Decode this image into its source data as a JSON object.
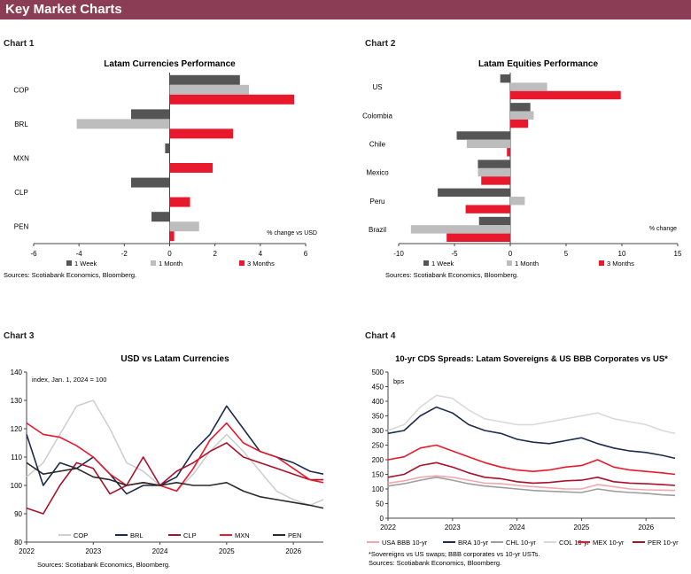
{
  "header": {
    "title": "Key Market Charts"
  },
  "chart_headings": [
    "Chart 1",
    "Chart 2",
    "Chart 3",
    "Chart 4"
  ],
  "chart_data": [
    {
      "type": "bar",
      "orientation": "horizontal",
      "title": "Latam Currencies Performance",
      "categories": [
        "COP",
        "BRL",
        "MXN",
        "CLP",
        "PEN"
      ],
      "series": [
        {
          "name": "1 Week",
          "color": "#555555",
          "values": [
            3.1,
            -1.7,
            -0.2,
            -1.7,
            -0.8
          ]
        },
        {
          "name": "1 Month",
          "color": "#bdbdbd",
          "values": [
            3.5,
            -4.1,
            0.0,
            0.0,
            1.3
          ]
        },
        {
          "name": "3 Months",
          "color": "#e8192c",
          "values": [
            5.5,
            2.8,
            1.9,
            0.9,
            0.2
          ]
        }
      ],
      "xlim": [
        -6,
        6
      ],
      "xticks": [
        "-6",
        "-4",
        "-2",
        "0",
        "2",
        "4",
        "6"
      ],
      "annotation": "% change vs USD",
      "source": "Sources: Scotiabank Economics, Bloomberg."
    },
    {
      "type": "bar",
      "orientation": "horizontal",
      "title": "Latam Equities Performance",
      "categories": [
        "US",
        "Colombia",
        "Chile",
        "Mexico",
        "Peru",
        "Brazil"
      ],
      "series": [
        {
          "name": "1 Week",
          "color": "#555555",
          "values": [
            -0.9,
            1.8,
            -4.8,
            -2.9,
            -6.5,
            -2.8
          ]
        },
        {
          "name": "1 Month",
          "color": "#bdbdbd",
          "values": [
            3.3,
            2.1,
            -3.9,
            -2.9,
            1.3,
            -8.9
          ]
        },
        {
          "name": "3 Months",
          "color": "#e8192c",
          "values": [
            9.9,
            1.6,
            -0.3,
            -2.6,
            -4.0,
            -5.7
          ]
        }
      ],
      "xlim": [
        -10,
        15
      ],
      "xticks": [
        "-10",
        "-5",
        "0",
        "5",
        "10",
        "15"
      ],
      "annotation": "% change",
      "source": "Sources: Scotiabank Economics, Bloomberg."
    },
    {
      "type": "line",
      "title": "USD vs Latam Currencies",
      "annotation": "index, Jan. 1, 2024 = 100",
      "ylim": [
        80,
        140
      ],
      "yticks": [
        "80",
        "90",
        "100",
        "110",
        "120",
        "130",
        "140"
      ],
      "xlim": [
        2022.0,
        2026.45
      ],
      "xticks": [
        {
          "label": "2022",
          "x": 2022.0
        },
        {
          "label": "2023",
          "x": 2023.0
        },
        {
          "label": "2024",
          "x": 2024.0
        },
        {
          "label": "2025",
          "x": 2025.0
        },
        {
          "label": "2026",
          "x": 2026.0
        }
      ],
      "x": [
        2022.0,
        2022.25,
        2022.5,
        2022.75,
        2023.0,
        2023.25,
        2023.5,
        2023.75,
        2024.0,
        2024.25,
        2024.5,
        2024.75,
        2025.0,
        2025.25,
        2025.5,
        2025.75,
        2026.0,
        2026.25,
        2026.45
      ],
      "series": [
        {
          "name": "COP",
          "color": "#cfcfcf",
          "values": [
            103,
            108,
            118,
            128,
            130,
            120,
            108,
            105,
            100,
            98,
            104,
            112,
            118,
            112,
            105,
            98,
            95,
            93,
            95
          ]
        },
        {
          "name": "BRL",
          "color": "#1c2c4c",
          "values": [
            118,
            100,
            108,
            106,
            110,
            104,
            97,
            100,
            100,
            103,
            112,
            118,
            128,
            120,
            112,
            110,
            108,
            105,
            104
          ]
        },
        {
          "name": "CLP",
          "color": "#a8122b",
          "values": [
            92,
            90,
            100,
            108,
            106,
            97,
            100,
            110,
            100,
            105,
            108,
            112,
            115,
            110,
            108,
            106,
            104,
            102,
            102
          ]
        },
        {
          "name": "MXN",
          "color": "#e8192c",
          "values": [
            122,
            118,
            117,
            114,
            110,
            104,
            100,
            101,
            100,
            98,
            106,
            116,
            122,
            115,
            112,
            110,
            106,
            102,
            101
          ]
        },
        {
          "name": "PEN",
          "color": "#2a2a2a",
          "values": [
            108,
            104,
            105,
            106,
            103,
            102,
            100,
            101,
            100,
            101,
            100,
            100,
            101,
            98,
            96,
            95,
            94,
            93,
            92
          ]
        }
      ],
      "source": "Sources: Scotiabank Economics, Bloomberg."
    },
    {
      "type": "line",
      "title": "10-yr CDS Spreads: Latam Sovereigns & US BBB Corporates vs US*",
      "annotation": "bps",
      "ylim": [
        0,
        500
      ],
      "yticks": [
        "0",
        "50",
        "100",
        "150",
        "200",
        "250",
        "300",
        "350",
        "400",
        "450",
        "500"
      ],
      "xlim": [
        2022.0,
        2026.45
      ],
      "xticks": [
        {
          "label": "2022",
          "x": 2022.0
        },
        {
          "label": "2023",
          "x": 2023.0
        },
        {
          "label": "2024",
          "x": 2024.0
        },
        {
          "label": "2025",
          "x": 2025.0
        },
        {
          "label": "2026",
          "x": 2026.0
        }
      ],
      "x": [
        2022.0,
        2022.25,
        2022.5,
        2022.75,
        2023.0,
        2023.25,
        2023.5,
        2023.75,
        2024.0,
        2024.25,
        2024.5,
        2024.75,
        2025.0,
        2025.25,
        2025.5,
        2025.75,
        2026.0,
        2026.25,
        2026.45
      ],
      "series": [
        {
          "name": "USA BBB 10-yr",
          "color": "#f2a7ad",
          "values": [
            120,
            128,
            140,
            145,
            140,
            130,
            120,
            118,
            112,
            108,
            104,
            100,
            100,
            115,
            108,
            100,
            97,
            96,
            95
          ]
        },
        {
          "name": "BRA 10-yr",
          "color": "#1c2c4c",
          "values": [
            290,
            300,
            350,
            380,
            360,
            320,
            300,
            290,
            270,
            260,
            255,
            265,
            275,
            255,
            240,
            230,
            225,
            215,
            205
          ]
        },
        {
          "name": "CHL 10-yr",
          "color": "#9e9e9e",
          "values": [
            110,
            118,
            130,
            140,
            130,
            118,
            110,
            105,
            100,
            95,
            92,
            90,
            88,
            100,
            92,
            88,
            85,
            80,
            78
          ]
        },
        {
          "name": "COL 10-yr",
          "color": "#d9d9d9",
          "values": [
            300,
            320,
            380,
            420,
            410,
            370,
            340,
            330,
            320,
            320,
            330,
            340,
            350,
            360,
            340,
            330,
            320,
            300,
            290
          ]
        },
        {
          "name": "MEX 10-yr",
          "color": "#e8192c",
          "values": [
            200,
            210,
            240,
            250,
            230,
            210,
            190,
            175,
            165,
            160,
            165,
            175,
            180,
            200,
            175,
            165,
            160,
            155,
            150
          ]
        },
        {
          "name": "PER 10-yr",
          "color": "#a8122b",
          "values": [
            140,
            150,
            180,
            190,
            175,
            155,
            140,
            135,
            125,
            120,
            122,
            128,
            130,
            140,
            125,
            120,
            118,
            115,
            112
          ]
        }
      ],
      "footnote": "*Sovereigns vs US swaps; BBB corporates vs 10-yr USTs.",
      "source": "Sources: Scotiabank Economics, Bloomberg."
    }
  ]
}
